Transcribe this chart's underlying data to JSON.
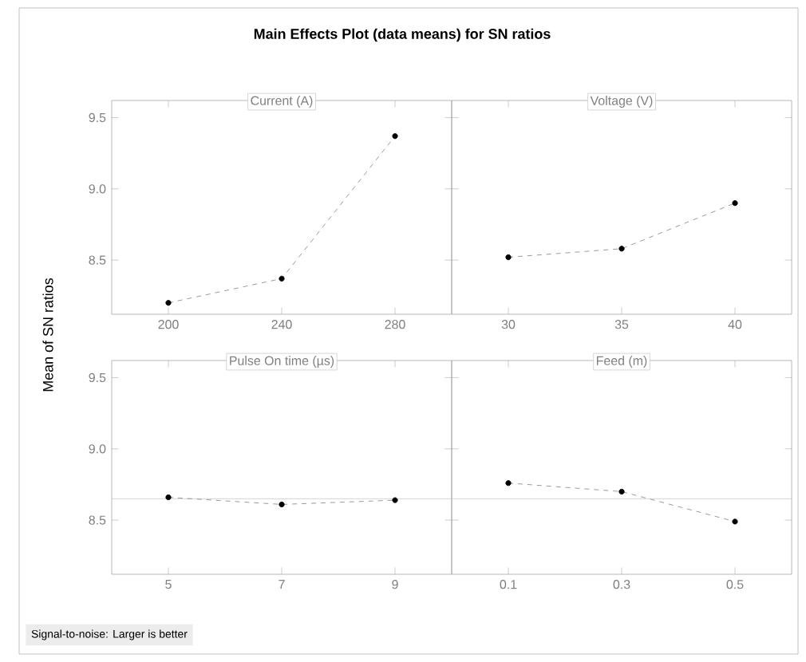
{
  "chart_data": [
    {
      "type": "line",
      "title": "Main Effects Plot (data means) for SN ratios",
      "subtitle": "Current (A)",
      "ylabel": "Mean of SN ratios",
      "categories": [
        "200",
        "240",
        "280"
      ],
      "values": [
        8.2,
        8.37,
        9.37
      ],
      "color": "#000000",
      "marker": "circle",
      "line_style": "dashed",
      "ylim": [
        8.12,
        9.62
      ],
      "yticks": [
        8.5,
        {
          "value": 9.0,
          "label": "9.0"
        },
        9.5
      ]
    },
    {
      "type": "line",
      "subtitle": "Voltage (V)",
      "categories": [
        "30",
        "35",
        "40"
      ],
      "values": [
        8.52,
        8.58,
        8.9
      ],
      "color": "#000000",
      "marker": "circle",
      "line_style": "dashed",
      "ylim": [
        8.12,
        9.62
      ],
      "yticks": [
        8.5,
        9.0,
        9.5
      ],
      "tick_labels": "x"
    },
    {
      "type": "line",
      "subtitle": "Pulse On time (µs)",
      "categories": [
        "5",
        "7",
        "9"
      ],
      "values": [
        8.66,
        8.61,
        8.64
      ],
      "color": "#000000",
      "marker": "circle",
      "line_style": "dashed",
      "ylim": [
        8.12,
        9.62
      ],
      "yticks": [
        8.5,
        {
          "value": 9.0,
          "label": "9.0"
        },
        9.5
      ],
      "ref_lines": [
        {
          "axis": "y",
          "value": 8.65,
          "color": "#c8c8c8"
        }
      ],
      "annotations": [
        "Signal-to-noise: Larger is better"
      ]
    },
    {
      "type": "line",
      "subtitle": "Feed (m)",
      "categories": [
        "0.1",
        "0.3",
        "0.5"
      ],
      "values": [
        8.76,
        8.7,
        8.49
      ],
      "color": "#000000",
      "marker": "circle",
      "line_style": "dashed",
      "ylim": [
        8.12,
        9.62
      ],
      "yticks": [
        8.5,
        9.0,
        9.5
      ],
      "tick_labels": "x",
      "ref_lines": [
        {
          "axis": "y",
          "value": 8.65,
          "color": "#c8c8c8"
        }
      ]
    }
  ]
}
